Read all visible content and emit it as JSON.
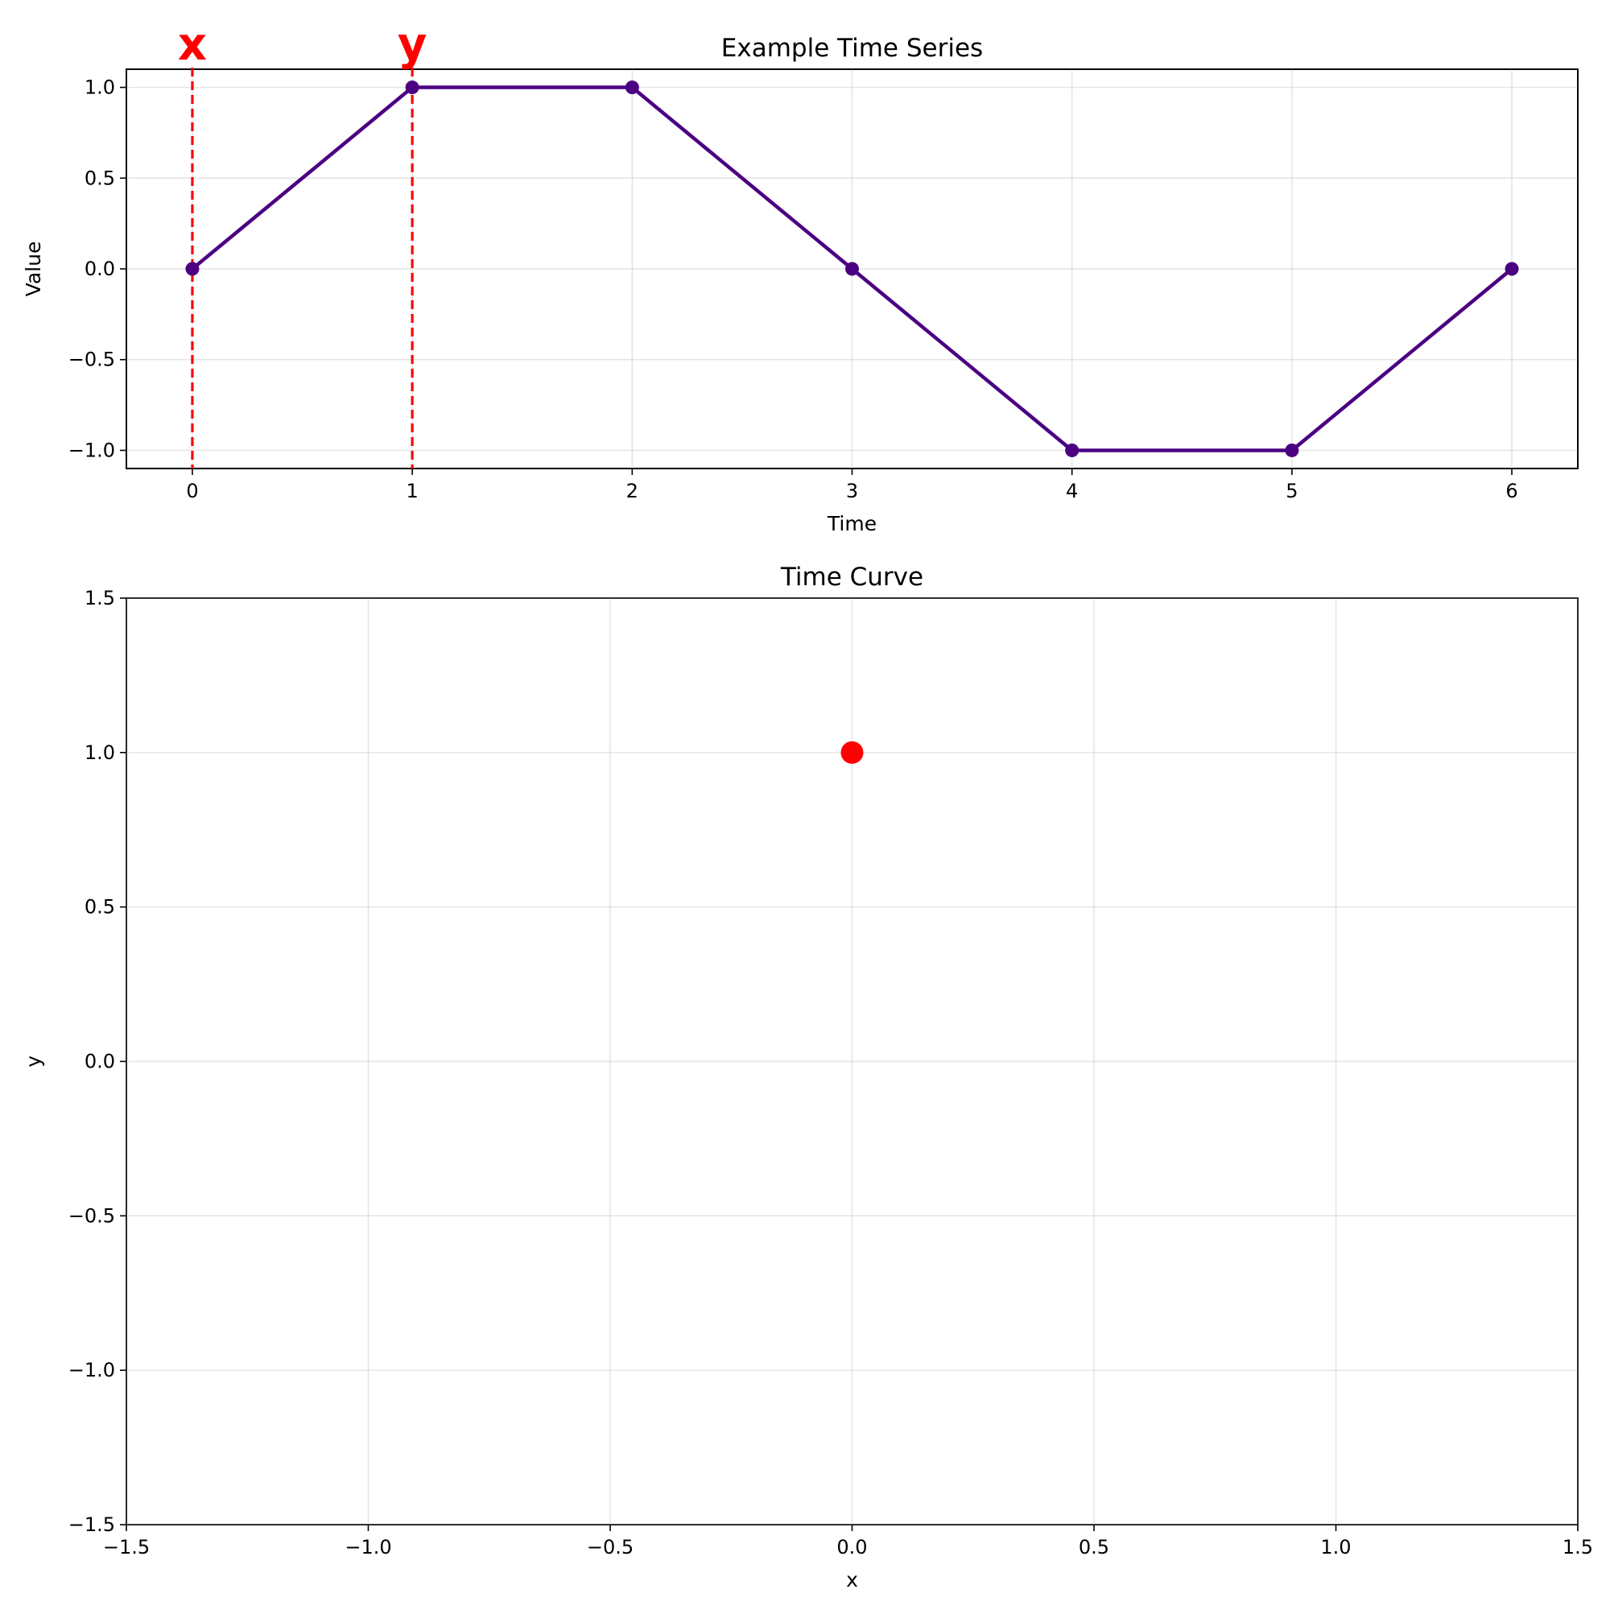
{
  "chart_data": [
    {
      "type": "line",
      "title": "Example Time Series",
      "xlabel": "Time",
      "ylabel": "Value",
      "xlim": [
        -0.3,
        6.3
      ],
      "ylim": [
        -1.1,
        1.1
      ],
      "xticks": [
        0,
        1,
        2,
        3,
        4,
        5,
        6
      ],
      "yticks": [
        -1.0,
        -0.5,
        0.0,
        0.5,
        1.0
      ],
      "xtick_labels": [
        "0",
        "1",
        "2",
        "3",
        "4",
        "5",
        "6"
      ],
      "ytick_labels": [
        "−1.0",
        "−0.5",
        "0.0",
        "0.5",
        "1.0"
      ],
      "grid": true,
      "series": [
        {
          "x": [
            0,
            1,
            2,
            3,
            4,
            5,
            6
          ],
          "y": [
            0,
            1,
            1,
            0,
            -1,
            -1,
            0
          ],
          "color": "#4b0082",
          "marker": "circle"
        }
      ],
      "markers": [
        {
          "label": "x",
          "x": 0,
          "color": "#ff0000",
          "style": "dashed"
        },
        {
          "label": "y",
          "x": 1,
          "color": "#ff0000",
          "style": "dashed"
        }
      ]
    },
    {
      "type": "scatter",
      "title": "Time Curve",
      "xlabel": "x",
      "ylabel": "y",
      "xlim": [
        -1.5,
        1.5
      ],
      "ylim": [
        -1.5,
        1.5
      ],
      "xticks": [
        -1.5,
        -1.0,
        -0.5,
        0.0,
        0.5,
        1.0,
        1.5
      ],
      "yticks": [
        -1.5,
        -1.0,
        -0.5,
        0.0,
        0.5,
        1.0,
        1.5
      ],
      "xtick_labels": [
        "−1.5",
        "−1.0",
        "−0.5",
        "0.0",
        "0.5",
        "1.0",
        "1.5"
      ],
      "ytick_labels": [
        "−1.5",
        "−1.0",
        "−0.5",
        "0.0",
        "0.5",
        "1.0",
        "1.5"
      ],
      "grid": true,
      "points": [
        {
          "x": 0.0,
          "y": 1.0,
          "color": "#ff0000"
        }
      ]
    }
  ]
}
